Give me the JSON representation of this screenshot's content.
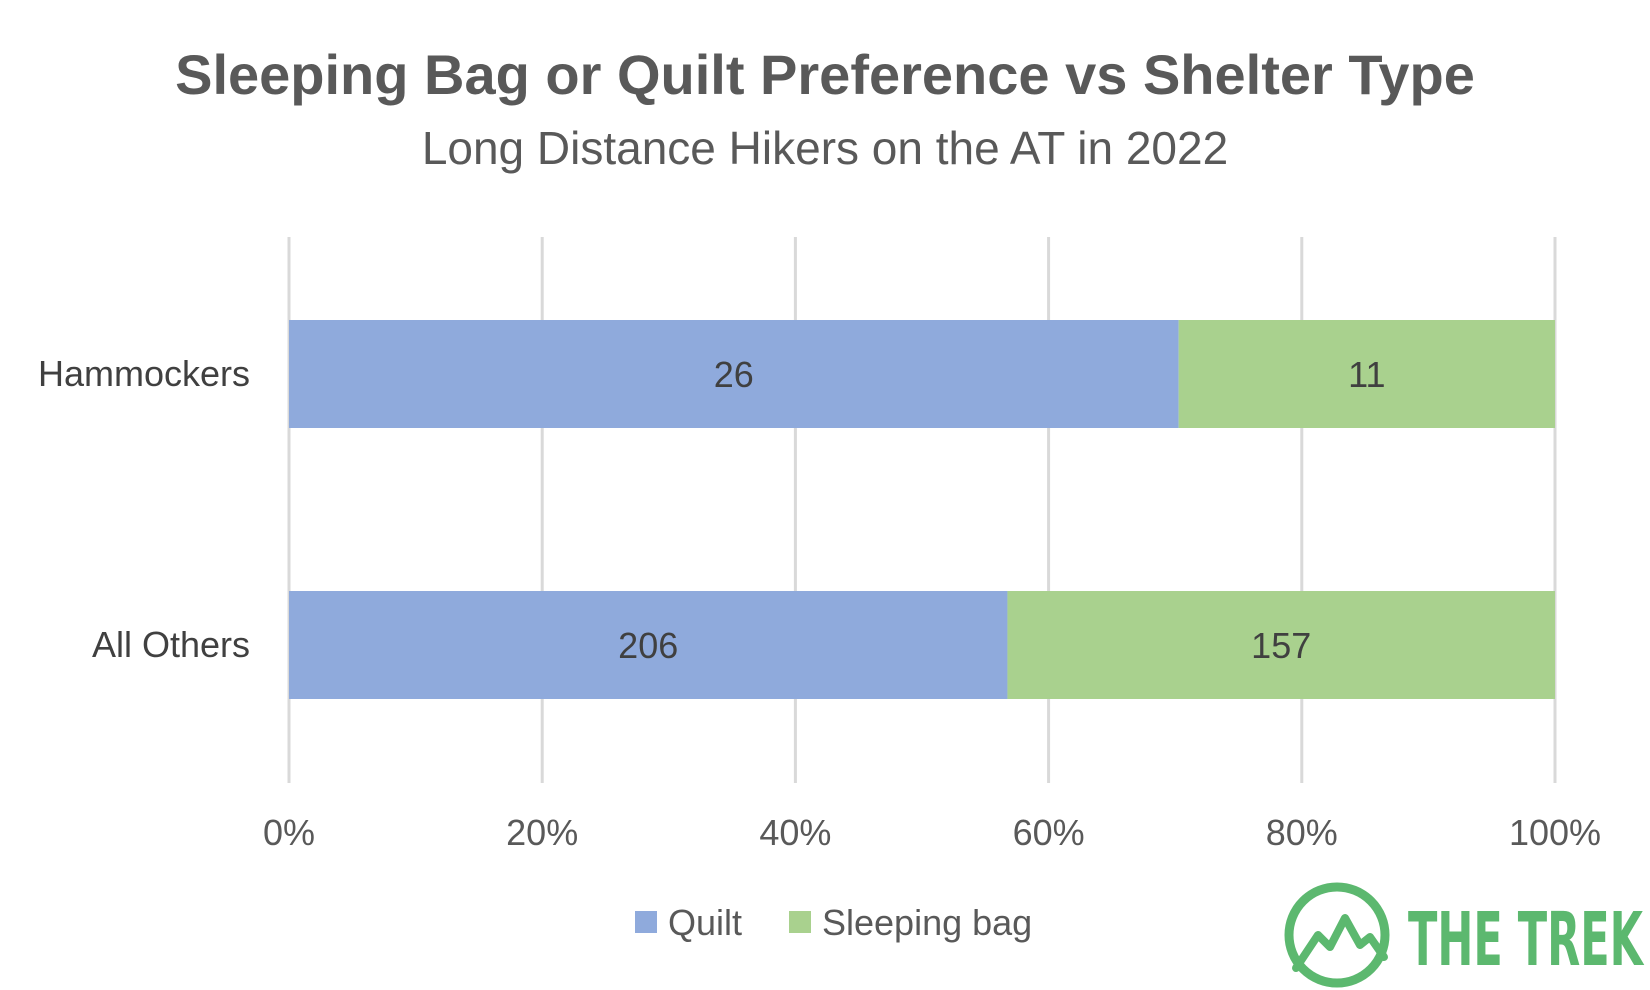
{
  "chart_data": {
    "type": "bar",
    "orientation": "horizontal",
    "stacking": "percent",
    "title": "Sleeping Bag or Quilt Preference vs Shelter Type",
    "subtitle": "Long Distance Hikers on the AT in 2022",
    "categories": [
      "Hammockers",
      "All Others"
    ],
    "series": [
      {
        "name": "Quilt",
        "values": [
          26,
          206
        ],
        "color": "#8faadc"
      },
      {
        "name": "Sleeping bag",
        "values": [
          11,
          157
        ],
        "color": "#a9d18e"
      }
    ],
    "x_ticks": [
      "0%",
      "20%",
      "40%",
      "60%",
      "80%",
      "100%"
    ],
    "xlim": [
      0,
      100
    ],
    "grid": true,
    "legend_position": "bottom"
  },
  "logo": {
    "text": "THE TREK",
    "color": "#5cb86f",
    "icon": "mountain-circle-icon"
  }
}
